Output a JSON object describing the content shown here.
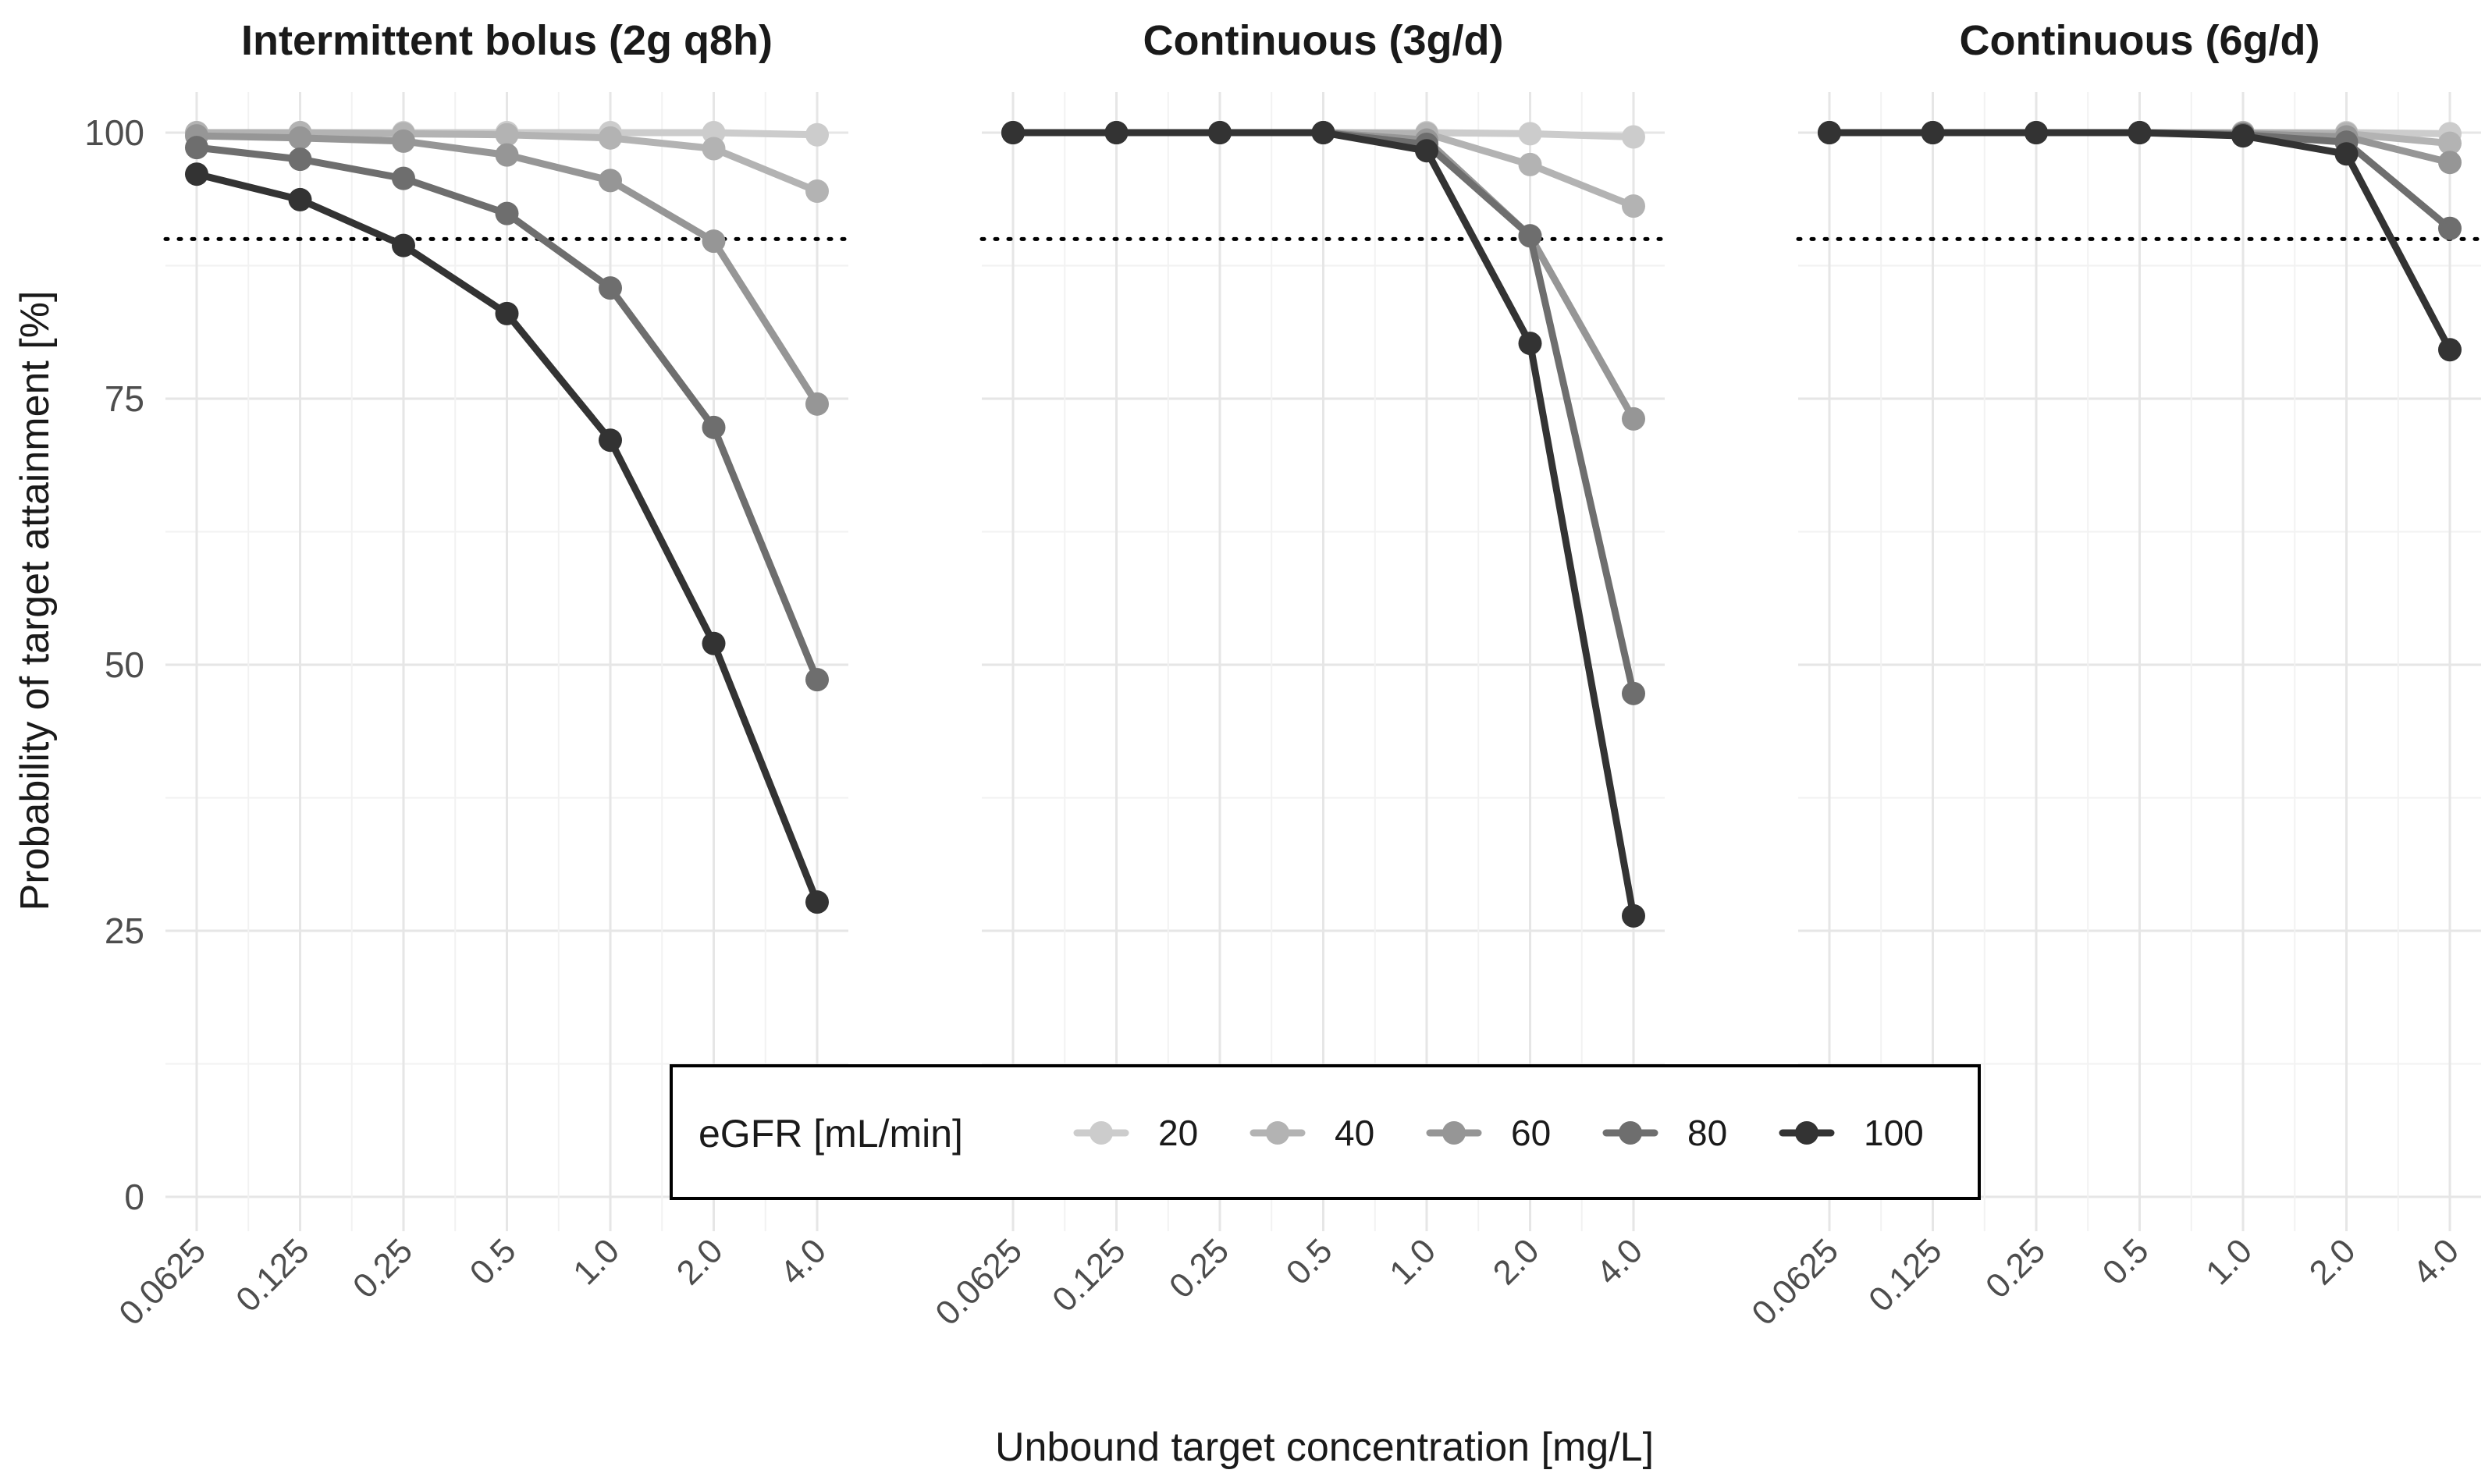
{
  "chart_data": {
    "type": "line",
    "ylabel": "Probability of target attainment [%]",
    "xlabel": "Unbound target concentration [mg/L]",
    "x_tick_labels": [
      "0.0625",
      "0.125",
      "0.25",
      "0.5",
      "1.0",
      "2.0",
      "4.0"
    ],
    "y_ticks": [
      0,
      25,
      50,
      75,
      100
    ],
    "ylim": [
      0,
      100
    ],
    "reference_line": 90,
    "legend": {
      "title": "eGFR [mL/min]",
      "position": "bottom-center",
      "entries": [
        "20",
        "40",
        "60",
        "80",
        "100"
      ]
    },
    "series_colors": [
      "#cccccc",
      "#b3b3b3",
      "#969696",
      "#6e6e6e",
      "#333333"
    ],
    "panels": [
      {
        "title": "Intermittent bolus (2g q8h)",
        "series": [
          {
            "name": "20",
            "values": [
              100,
              100,
              100,
              100,
              100,
              100,
              99.8
            ]
          },
          {
            "name": "40",
            "values": [
              100,
              100,
              99.9,
              99.8,
              99.5,
              98.5,
              94.5
            ]
          },
          {
            "name": "60",
            "values": [
              99.7,
              99.5,
              99.2,
              97.9,
              95.5,
              89.8,
              74.5
            ]
          },
          {
            "name": "80",
            "values": [
              98.6,
              97.5,
              95.7,
              92.4,
              85.4,
              72.3,
              48.6
            ]
          },
          {
            "name": "100",
            "values": [
              96.1,
              93.7,
              89.4,
              83.0,
              71.1,
              52.0,
              27.7
            ]
          }
        ]
      },
      {
        "title": "Continuous (3g/d)",
        "series": [
          {
            "name": "20",
            "values": [
              100,
              100,
              100,
              100,
              100,
              99.9,
              99.6
            ]
          },
          {
            "name": "40",
            "values": [
              100,
              100,
              100,
              100,
              99.9,
              97.0,
              93.1
            ]
          },
          {
            "name": "60",
            "values": [
              100,
              100,
              100,
              100,
              99.3,
              90.3,
              73.1
            ]
          },
          {
            "name": "80",
            "values": [
              100,
              100,
              100,
              100,
              98.9,
              90.3,
              47.3
            ]
          },
          {
            "name": "100",
            "values": [
              100,
              100,
              100,
              100,
              98.3,
              80.2,
              26.4
            ]
          }
        ]
      },
      {
        "title": "Continuous (6g/d)",
        "series": [
          {
            "name": "20",
            "values": [
              100,
              100,
              100,
              100,
              100,
              100,
              99.9
            ]
          },
          {
            "name": "40",
            "values": [
              100,
              100,
              100,
              100,
              100,
              99.9,
              99.0
            ]
          },
          {
            "name": "60",
            "values": [
              100,
              100,
              100,
              100,
              99.9,
              99.6,
              97.2
            ]
          },
          {
            "name": "80",
            "values": [
              100,
              100,
              100,
              100,
              99.8,
              99.1,
              91.0
            ]
          },
          {
            "name": "100",
            "values": [
              100,
              100,
              100,
              100,
              99.7,
              98.0,
              79.6
            ]
          }
        ]
      }
    ]
  }
}
